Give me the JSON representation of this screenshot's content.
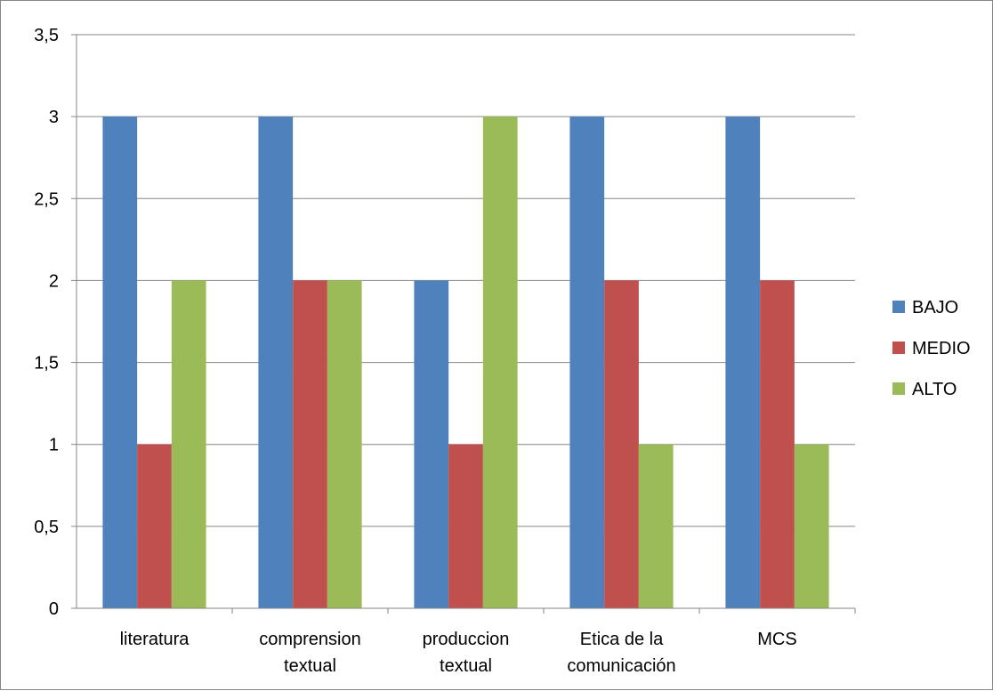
{
  "chart_data": {
    "type": "bar",
    "title": "",
    "xlabel": "",
    "ylabel": "",
    "categories": [
      [
        "literatura"
      ],
      [
        "comprension",
        "textual"
      ],
      [
        "produccion",
        "textual"
      ],
      [
        "Etica de la",
        "comunicación"
      ],
      [
        "MCS"
      ]
    ],
    "series": [
      {
        "name": "BAJO",
        "color": "#4F81BD",
        "values": [
          3,
          3,
          2,
          3,
          3
        ]
      },
      {
        "name": "MEDIO",
        "color": "#C0504D",
        "values": [
          1,
          2,
          1,
          2,
          2
        ]
      },
      {
        "name": "ALTO",
        "color": "#9BBB59",
        "values": [
          2,
          2,
          3,
          1,
          1
        ]
      }
    ],
    "ylim": [
      0,
      3.5
    ],
    "yticks": [
      "0",
      "0,5",
      "1",
      "1,5",
      "2",
      "2,5",
      "3",
      "3,5"
    ],
    "grid": true,
    "legend_position": "right"
  }
}
